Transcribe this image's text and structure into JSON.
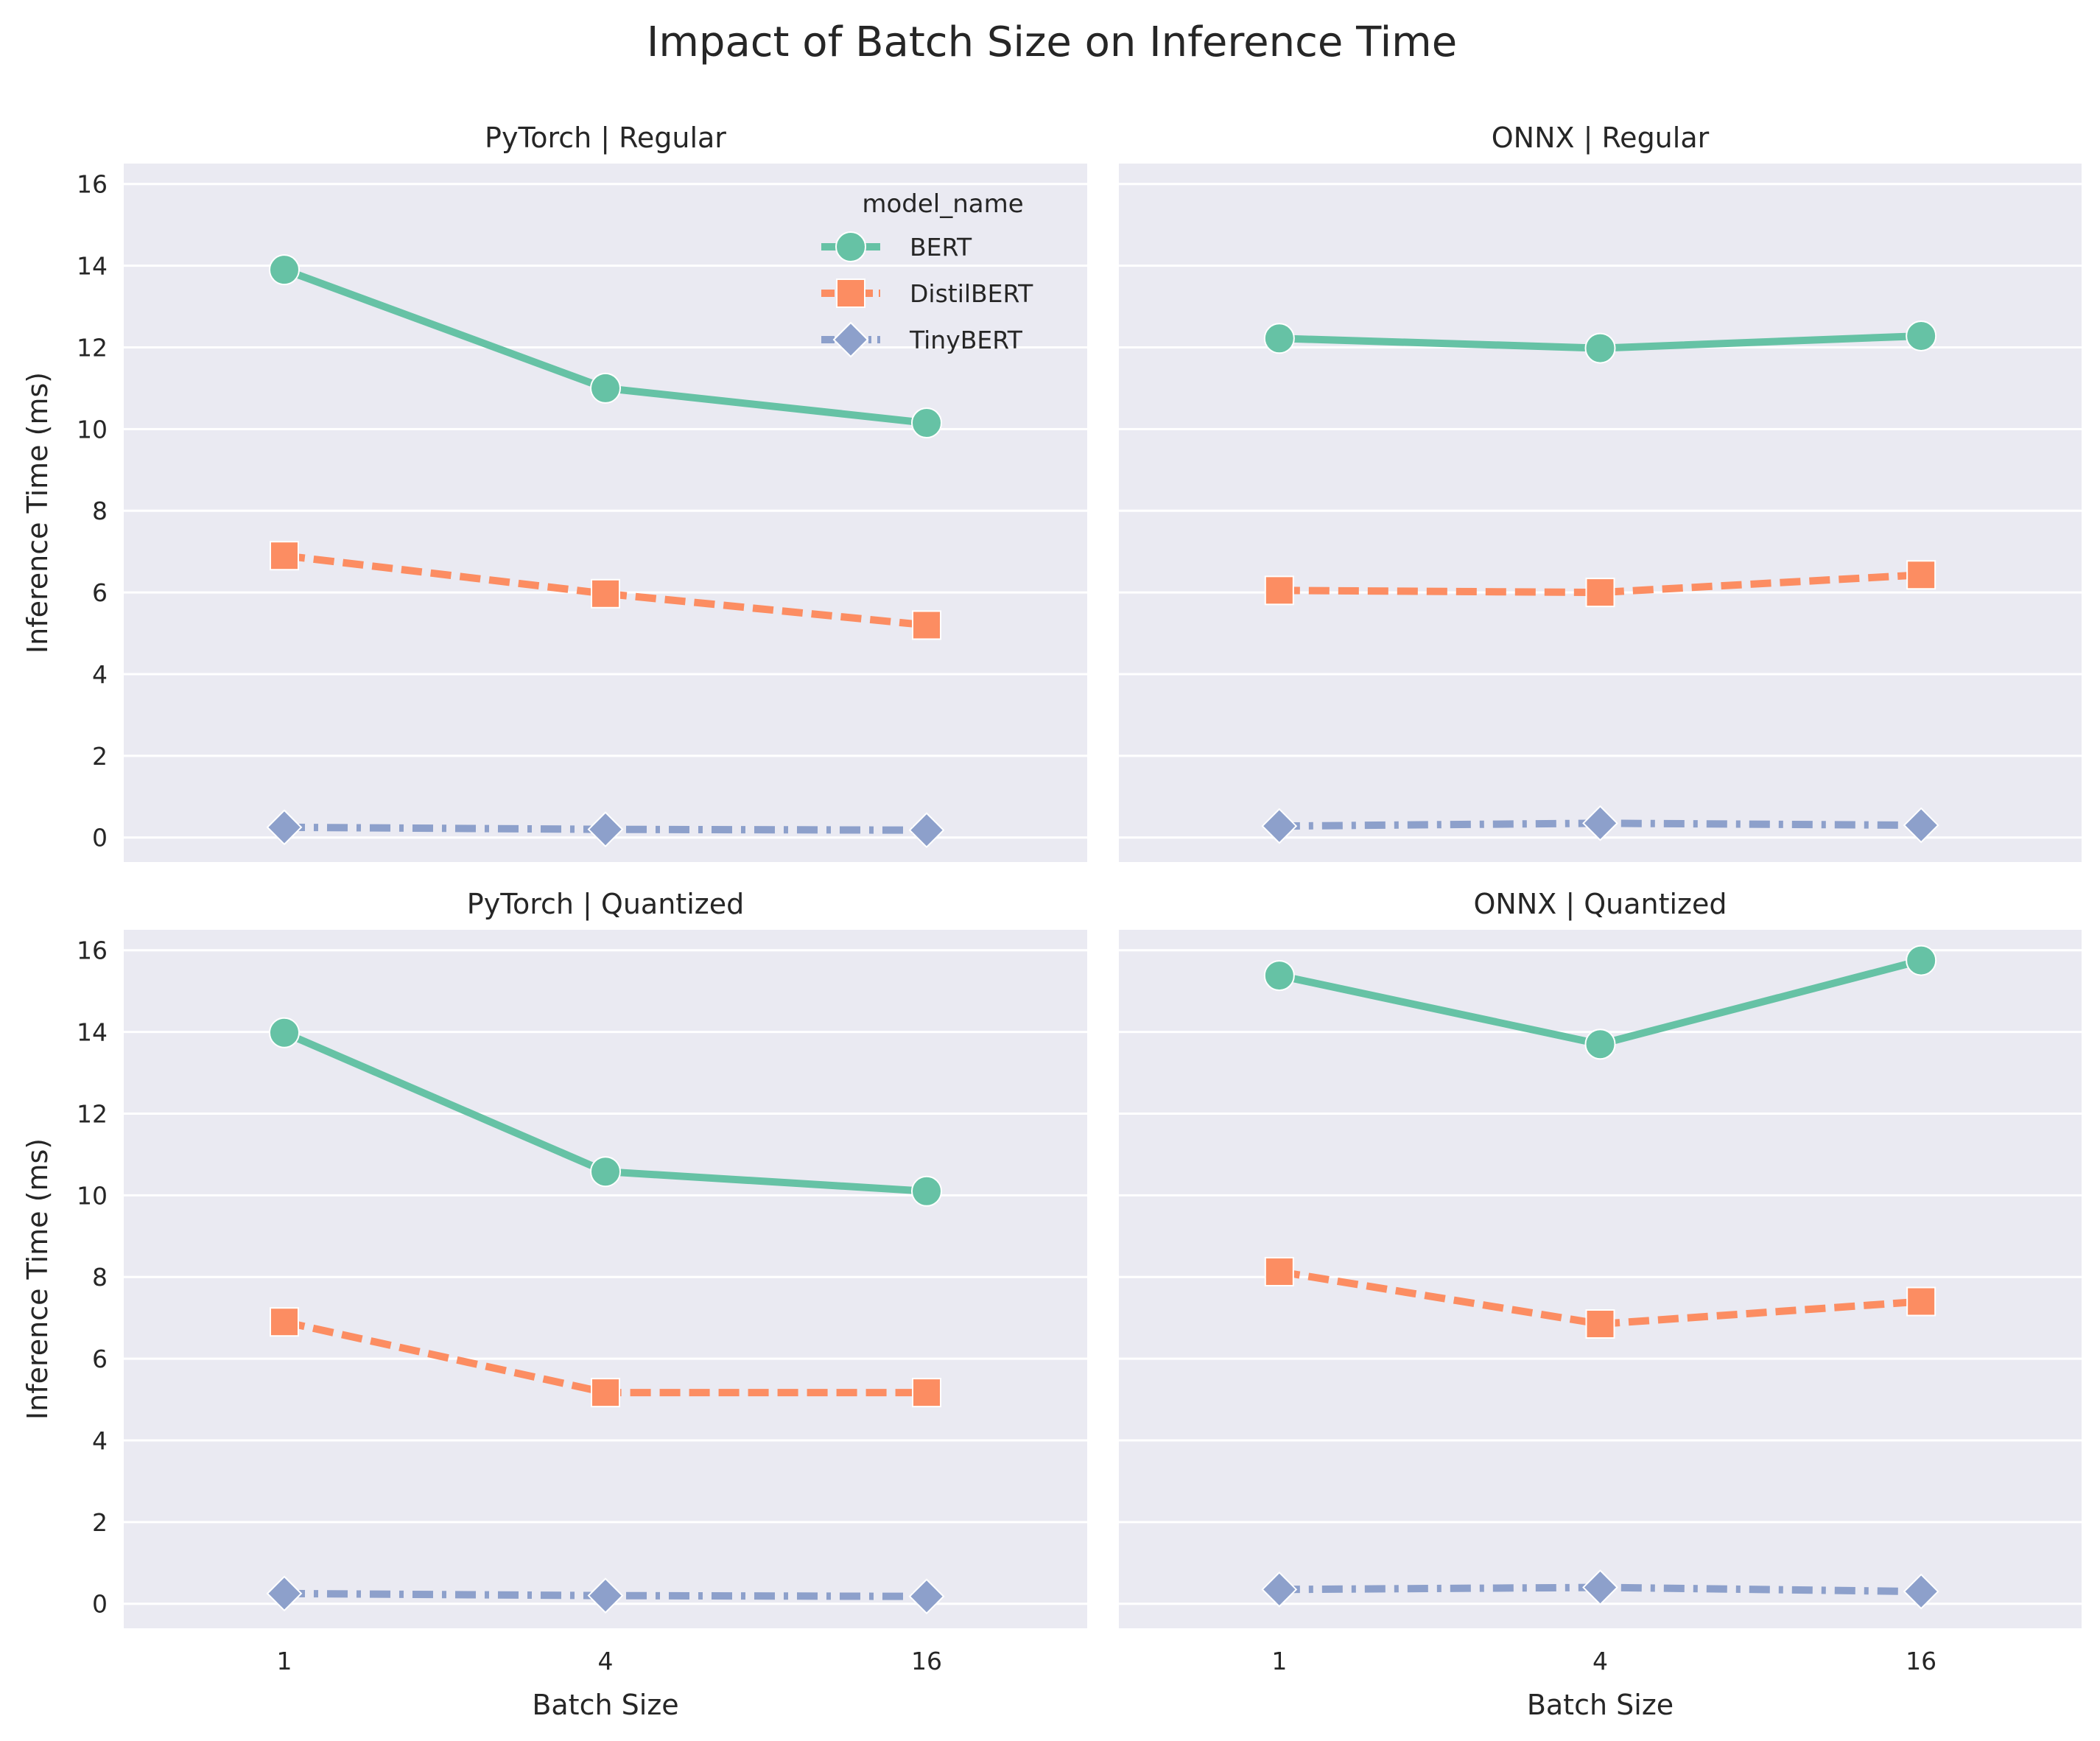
{
  "figure": {
    "title": "Impact of Batch Size on Inference Time"
  },
  "legend": {
    "title": "model_name",
    "entries": [
      "BERT",
      "DistilBERT",
      "TinyBERT"
    ]
  },
  "series_styles": [
    {
      "name": "BERT",
      "color": "#66c2a5",
      "marker": "circle",
      "dash": "solid"
    },
    {
      "name": "DistilBERT",
      "color": "#fc8d62",
      "marker": "square",
      "dash": "dashed"
    },
    {
      "name": "TinyBERT",
      "color": "#8da0cb",
      "marker": "diamond",
      "dash": "dashdot"
    }
  ],
  "background_color": "#eaeaf2",
  "chart_data": [
    {
      "type": "line",
      "title": "PyTorch | Regular",
      "xlabel": "",
      "ylabel": "Inference Time (ms)",
      "categories": [
        "1",
        "4",
        "16"
      ],
      "ylim": [
        -0.6,
        16.5
      ],
      "yticks": [
        0,
        2,
        4,
        6,
        8,
        10,
        12,
        14,
        16
      ],
      "grid": true,
      "legend": "top-right",
      "series": [
        {
          "name": "BERT",
          "values": [
            13.9,
            11.0,
            10.15
          ]
        },
        {
          "name": "DistilBERT",
          "values": [
            6.9,
            5.97,
            5.2
          ]
        },
        {
          "name": "TinyBERT",
          "values": [
            0.25,
            0.2,
            0.18
          ]
        }
      ]
    },
    {
      "type": "line",
      "title": "ONNX | Regular",
      "xlabel": "",
      "ylabel": "",
      "categories": [
        "1",
        "4",
        "16"
      ],
      "ylim": [
        -0.6,
        16.5
      ],
      "yticks": [
        0,
        2,
        4,
        6,
        8,
        10,
        12,
        14,
        16
      ],
      "grid": true,
      "series": [
        {
          "name": "BERT",
          "values": [
            12.22,
            11.98,
            12.28
          ]
        },
        {
          "name": "DistilBERT",
          "values": [
            6.05,
            6.0,
            6.43
          ]
        },
        {
          "name": "TinyBERT",
          "values": [
            0.28,
            0.35,
            0.3
          ]
        }
      ]
    },
    {
      "type": "line",
      "title": "PyTorch | Quantized",
      "xlabel": "Batch Size",
      "ylabel": "Inference Time (ms)",
      "categories": [
        "1",
        "4",
        "16"
      ],
      "ylim": [
        -0.6,
        16.5
      ],
      "yticks": [
        0,
        2,
        4,
        6,
        8,
        10,
        12,
        14,
        16
      ],
      "grid": true,
      "series": [
        {
          "name": "BERT",
          "values": [
            13.98,
            10.58,
            10.1
          ]
        },
        {
          "name": "DistilBERT",
          "values": [
            6.9,
            5.17,
            5.17
          ]
        },
        {
          "name": "TinyBERT",
          "values": [
            0.25,
            0.2,
            0.18
          ]
        }
      ]
    },
    {
      "type": "line",
      "title": "ONNX | Quantized",
      "xlabel": "Batch Size",
      "ylabel": "",
      "categories": [
        "1",
        "4",
        "16"
      ],
      "ylim": [
        -0.6,
        16.5
      ],
      "yticks": [
        0,
        2,
        4,
        6,
        8,
        10,
        12,
        14,
        16
      ],
      "grid": true,
      "series": [
        {
          "name": "BERT",
          "values": [
            15.38,
            13.7,
            15.75
          ]
        },
        {
          "name": "DistilBERT",
          "values": [
            8.13,
            6.85,
            7.4
          ]
        },
        {
          "name": "TinyBERT",
          "values": [
            0.35,
            0.4,
            0.3
          ]
        }
      ]
    }
  ]
}
